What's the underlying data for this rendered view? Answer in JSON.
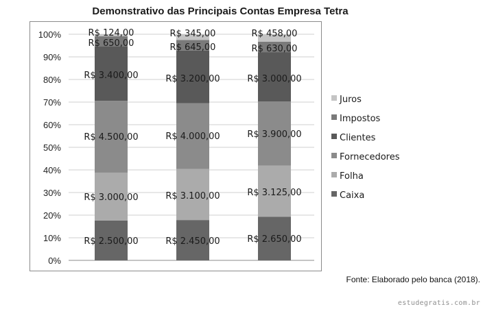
{
  "title": "Demonstrativo das Principais Contas Empresa Tetra",
  "source": "Fonte: Elaborado pelo banca (2018).",
  "watermark": "estudegratis.com.br",
  "chart_data": {
    "type": "bar",
    "stacked": "percent",
    "categories": [
      "",
      "",
      ""
    ],
    "ylim": [
      0,
      100
    ],
    "yticks": [
      "0%",
      "10%",
      "20%",
      "30%",
      "40%",
      "50%",
      "60%",
      "70%",
      "80%",
      "90%",
      "100%"
    ],
    "grid": true,
    "legend_position": "right",
    "series": [
      {
        "name": "Caixa",
        "values": [
          2500,
          2450,
          2650
        ],
        "labels": [
          "R$ 2.500,00",
          "R$ 2.450,00",
          "R$ 2.650,00"
        ],
        "color": "#666666"
      },
      {
        "name": "Folha",
        "values": [
          3000,
          3100,
          3125
        ],
        "labels": [
          "R$ 3.000,00",
          "R$ 3.100,00",
          "R$ 3.125,00"
        ],
        "color": "#ababab"
      },
      {
        "name": "Fornecedores",
        "values": [
          4500,
          4000,
          3900
        ],
        "labels": [
          "R$ 4.500,00",
          "R$ 4.000,00",
          "R$ 3.900,00"
        ],
        "color": "#8b8b8b"
      },
      {
        "name": "Clientes",
        "values": [
          3400,
          3200,
          3000
        ],
        "labels": [
          "R$ 3.400,00",
          "R$ 3.200,00",
          "R$ 3.000,00"
        ],
        "color": "#595959"
      },
      {
        "name": "Impostos",
        "values": [
          650,
          645,
          630
        ],
        "labels": [
          "R$ 650,00",
          "R$ 645,00",
          "R$ 630,00"
        ],
        "color": "#7a7a7a"
      },
      {
        "name": "Juros",
        "values": [
          124,
          345,
          458
        ],
        "labels": [
          "R$ 124,00",
          "R$ 345,00",
          "R$ 458,00"
        ],
        "color": "#c4c4c4"
      }
    ]
  }
}
